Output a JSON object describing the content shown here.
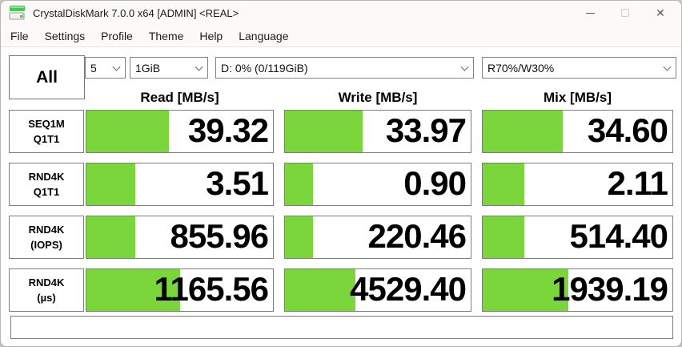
{
  "window": {
    "title": "CrystalDiskMark 7.0.0 x64 [ADMIN] <REAL>"
  },
  "menu": {
    "items": [
      "File",
      "Settings",
      "Profile",
      "Theme",
      "Help",
      "Language"
    ]
  },
  "toolbar": {
    "all_button_label": "All",
    "test_count": "5",
    "test_size": "1GiB",
    "target_drive": "D: 0% (0/119GiB)",
    "mix_ratio": "R70%/W30%"
  },
  "colors": {
    "bar_green": "#7bd63b",
    "cell_border": "#7d7d7d",
    "titlebar_bg": "#fbfaf9"
  },
  "results": {
    "columns": [
      "Read [MB/s]",
      "Write [MB/s]",
      "Mix [MB/s]"
    ],
    "rows": [
      {
        "label_line1": "SEQ1M",
        "label_line2": "Q1T1",
        "read": {
          "value": "39.32",
          "bar_percent": 44
        },
        "write": {
          "value": "33.97",
          "bar_percent": 42
        },
        "mix": {
          "value": "34.60",
          "bar_percent": 42
        }
      },
      {
        "label_line1": "RND4K",
        "label_line2": "Q1T1",
        "read": {
          "value": "3.51",
          "bar_percent": 26
        },
        "write": {
          "value": "0.90",
          "bar_percent": 15
        },
        "mix": {
          "value": "2.11",
          "bar_percent": 22
        }
      },
      {
        "label_line1": "RND4K",
        "label_line2": "(IOPS)",
        "read": {
          "value": "855.96",
          "bar_percent": 26
        },
        "write": {
          "value": "220.46",
          "bar_percent": 15
        },
        "mix": {
          "value": "514.40",
          "bar_percent": 22
        }
      },
      {
        "label_line1": "RND4K",
        "label_line2": "(µs)",
        "read": {
          "value": "1165.56",
          "bar_percent": 50
        },
        "write": {
          "value": "4529.40",
          "bar_percent": 38
        },
        "mix": {
          "value": "1939.19",
          "bar_percent": 45
        }
      }
    ]
  },
  "footer": {
    "comment_value": ""
  }
}
